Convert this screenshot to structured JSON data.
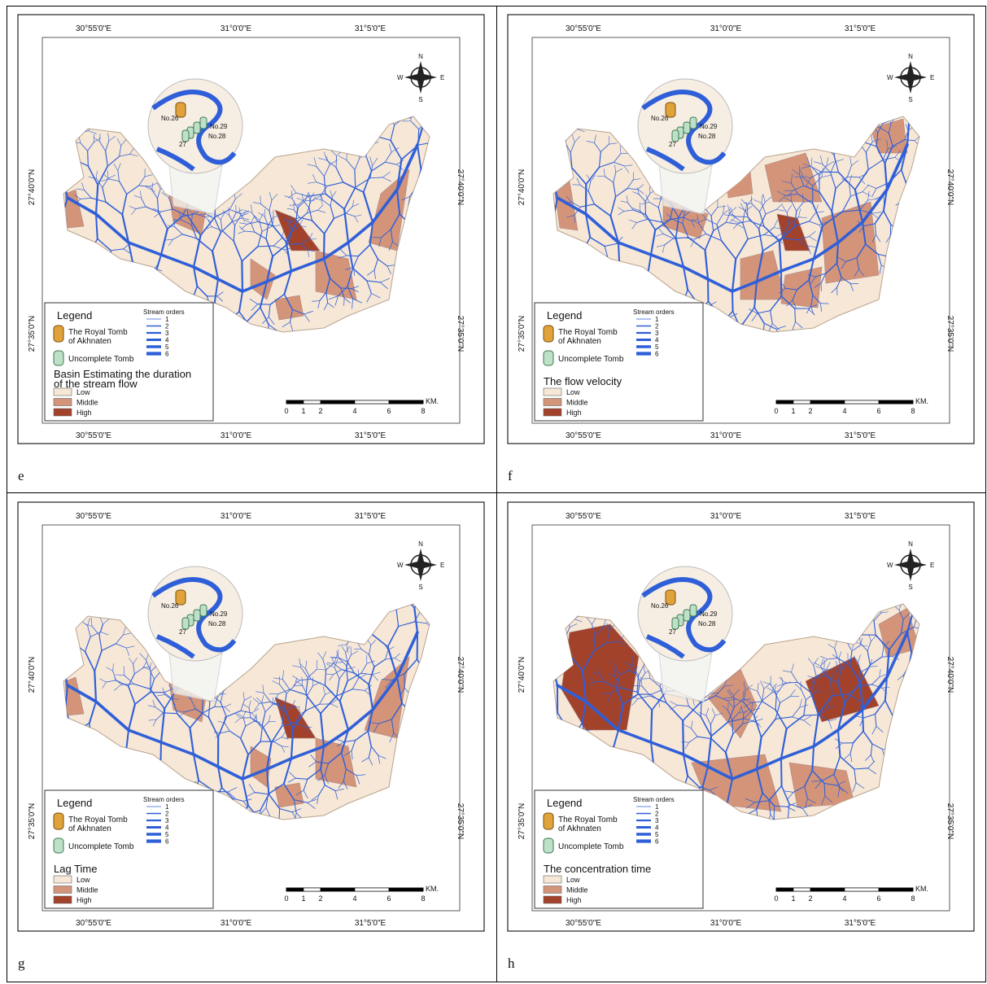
{
  "common": {
    "lon_labels": [
      "30°55'0\"E",
      "31°0'0\"E",
      "31°5'0\"E"
    ],
    "lat_labels": [
      "27°40'0\"N",
      "27°35'0\"N"
    ],
    "compass": {
      "N": "N",
      "S": "S",
      "E": "E",
      "W": "W"
    },
    "inset_labels": [
      "No.26",
      "No.29",
      "No.28",
      "27"
    ],
    "legend_title": "Legend",
    "royal_tomb": [
      "The Royal Tomb",
      "of Akhnaten"
    ],
    "uncomplete_tomb": "Uncomplete Tomb",
    "stream_orders_title": "Stream orders",
    "stream_orders": [
      "1",
      "2",
      "3",
      "4",
      "5",
      "6"
    ],
    "classes": [
      "Low",
      "Middle",
      "High"
    ],
    "class_colors": [
      "#f6e7d6",
      "#d39479",
      "#a3422b"
    ],
    "stream_color": "#2f5fd8",
    "scale": [
      0,
      1,
      2,
      4,
      6,
      8
    ],
    "scale_unit": "KM."
  },
  "panels": [
    {
      "label": "e",
      "title": [
        "Basin Estimating the duration",
        "of the stream flow"
      ]
    },
    {
      "label": "f",
      "title": [
        "The flow velocity"
      ]
    },
    {
      "label": "g",
      "title": [
        "Lag Time"
      ]
    },
    {
      "label": "h",
      "title": [
        "The concentration time"
      ]
    }
  ]
}
